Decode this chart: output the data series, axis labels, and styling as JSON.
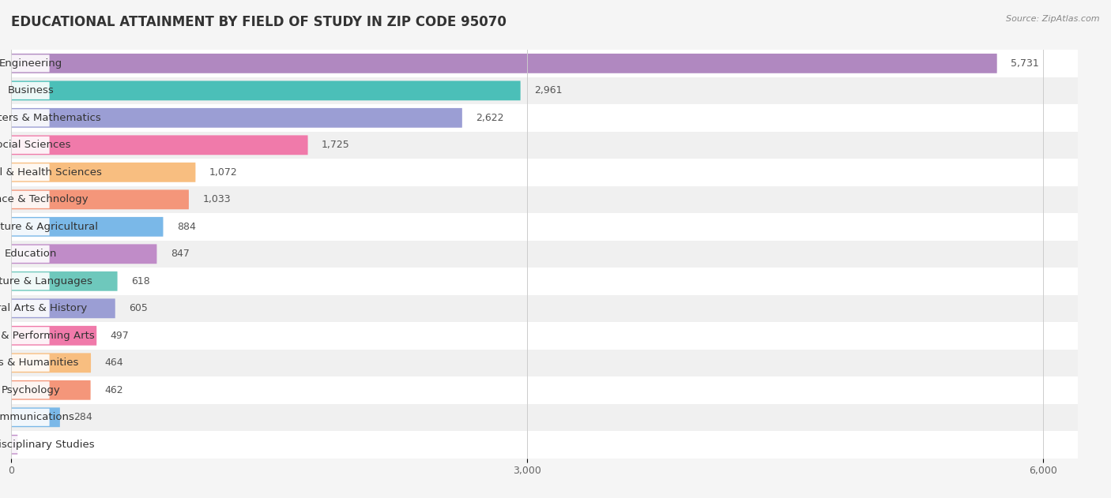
{
  "title": "EDUCATIONAL ATTAINMENT BY FIELD OF STUDY IN ZIP CODE 95070",
  "source": "Source: ZipAtlas.com",
  "categories": [
    "Engineering",
    "Business",
    "Computers & Mathematics",
    "Social Sciences",
    "Physical & Health Sciences",
    "Science & Technology",
    "Bio, Nature & Agricultural",
    "Education",
    "Literature & Languages",
    "Liberal Arts & History",
    "Visual & Performing Arts",
    "Arts & Humanities",
    "Psychology",
    "Communications",
    "Multidisciplinary Studies"
  ],
  "values": [
    5731,
    2961,
    2622,
    1725,
    1072,
    1033,
    884,
    847,
    618,
    605,
    497,
    464,
    462,
    284,
    38
  ],
  "bar_colors": [
    "#b088c0",
    "#4bbfb8",
    "#9b9ed4",
    "#f07aaa",
    "#f8be80",
    "#f4967a",
    "#7ab8e8",
    "#c08cc8",
    "#6ec8bc",
    "#9b9ed4",
    "#f07aaa",
    "#f8be80",
    "#f4967a",
    "#7ab8e8",
    "#c08cc8"
  ],
  "xlim": [
    0,
    6200
  ],
  "xticks": [
    0,
    3000,
    6000
  ],
  "background_color": "#f5f5f5",
  "row_color_even": "#ffffff",
  "row_color_odd": "#f0f0f0",
  "title_fontsize": 12,
  "label_fontsize": 9.5,
  "value_fontsize": 9
}
